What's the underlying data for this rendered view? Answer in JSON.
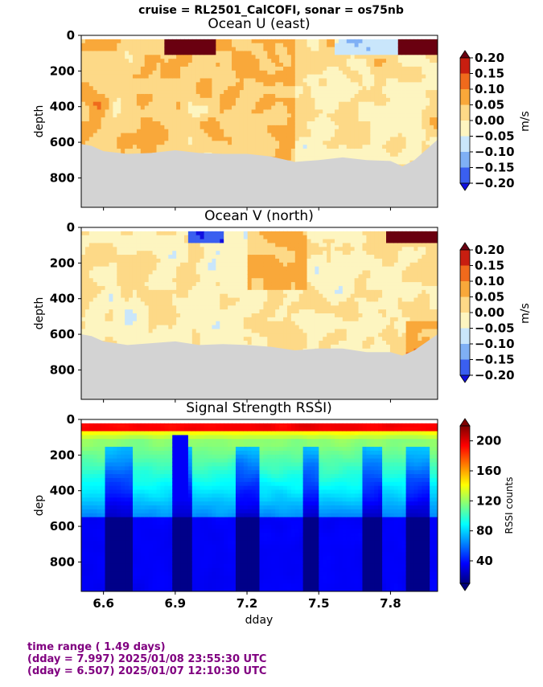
{
  "suptitle": "cruise = RL2501_CalCOFI,  sonar = os75nb",
  "footer": {
    "line1": "time range ( 1.49 days)",
    "line2": "(dday = 7.997) 2025/01/08 23:55:30 UTC",
    "line3": "(dday = 6.507) 2025/01/07 12:10:30 UTC"
  },
  "colors": {
    "land": "#d3d3d3",
    "footer_text": "#800080",
    "diverging": [
      "#1010e0",
      "#3a5ff0",
      "#7fb0f5",
      "#c9e6fb",
      "#fdf5c0",
      "#fdd987",
      "#f9a83a",
      "#f06a1c",
      "#c81e10",
      "#6a0010"
    ],
    "jet_stops": [
      "#00007f",
      "#0000ff",
      "#007fff",
      "#00ffff",
      "#7fff7f",
      "#ffff00",
      "#ff7f00",
      "#ff0000",
      "#7f0000"
    ]
  },
  "chart_data": [
    {
      "type": "heatmap",
      "title": "Ocean U (east)",
      "xlabel": "",
      "ylabel": "depth",
      "xlim": [
        6.507,
        7.997
      ],
      "ylim": [
        965,
        0
      ],
      "yticks": [
        0,
        200,
        400,
        600,
        800
      ],
      "ytick_labels": [
        "0",
        "200",
        "400",
        "600",
        "800"
      ],
      "colorbar": {
        "label": "m/s",
        "range": [
          -0.2,
          0.2
        ],
        "ticks": [
          "0.20",
          "0.15",
          "0.10",
          "0.05",
          "0.00",
          "−0.05",
          "−0.10",
          "−0.15",
          "−0.20"
        ]
      },
      "bottom_depth": [
        [
          6.507,
          610
        ],
        [
          6.55,
          620
        ],
        [
          6.6,
          650
        ],
        [
          6.7,
          665
        ],
        [
          6.8,
          660
        ],
        [
          6.9,
          645
        ],
        [
          7.0,
          660
        ],
        [
          7.1,
          665
        ],
        [
          7.2,
          665
        ],
        [
          7.3,
          680
        ],
        [
          7.4,
          710
        ],
        [
          7.5,
          700
        ],
        [
          7.6,
          685
        ],
        [
          7.7,
          700
        ],
        [
          7.8,
          705
        ],
        [
          7.85,
          735
        ],
        [
          7.9,
          700
        ],
        [
          7.997,
          585
        ]
      ],
      "note": "surface band strong positive near dday 6.9-7.05 and 7.85-8.0"
    },
    {
      "type": "heatmap",
      "title": "Ocean V (north)",
      "xlabel": "",
      "ylabel": "depth",
      "xlim": [
        6.507,
        7.997
      ],
      "ylim": [
        965,
        0
      ],
      "yticks": [
        0,
        200,
        400,
        600,
        800
      ],
      "ytick_labels": [
        "0",
        "200",
        "400",
        "600",
        "800"
      ],
      "colorbar": {
        "label": "m/s",
        "range": [
          -0.2,
          0.2
        ],
        "ticks": [
          "0.20",
          "0.15",
          "0.10",
          "0.05",
          "0.00",
          "−0.05",
          "−0.10",
          "−0.15",
          "−0.20"
        ]
      },
      "bottom_depth": [
        [
          6.507,
          600
        ],
        [
          6.55,
          610
        ],
        [
          6.6,
          640
        ],
        [
          6.7,
          660
        ],
        [
          6.8,
          650
        ],
        [
          6.9,
          640
        ],
        [
          7.0,
          660
        ],
        [
          7.1,
          655
        ],
        [
          7.2,
          660
        ],
        [
          7.3,
          670
        ],
        [
          7.4,
          690
        ],
        [
          7.5,
          680
        ],
        [
          7.6,
          680
        ],
        [
          7.7,
          700
        ],
        [
          7.8,
          700
        ],
        [
          7.85,
          720
        ],
        [
          7.9,
          690
        ],
        [
          7.997,
          600
        ]
      ]
    },
    {
      "type": "heatmap",
      "title": "Signal Strength RSSI)",
      "xlabel": "dday",
      "ylabel": "dep",
      "xlim": [
        6.507,
        7.997
      ],
      "ylim": [
        965,
        0
      ],
      "xticks": [
        6.6,
        6.9,
        7.2,
        7.5,
        7.8
      ],
      "xtick_labels": [
        "6.6",
        "6.9",
        "7.2",
        "7.5",
        "7.8"
      ],
      "yticks": [
        0,
        200,
        400,
        600,
        800
      ],
      "ytick_labels": [
        "0",
        "200",
        "400",
        "600",
        "800"
      ],
      "colorbar": {
        "label": "RSSI counts",
        "range": [
          10,
          220
        ],
        "ticks": [
          "200",
          "160",
          "120",
          "80",
          "40"
        ],
        "tick_values": [
          200,
          160,
          120,
          80,
          40
        ]
      },
      "dark_columns": [
        [
          6.6,
          6.72
        ],
        [
          6.88,
          6.96
        ],
        [
          7.15,
          7.24
        ],
        [
          7.42,
          7.5
        ],
        [
          7.67,
          7.76
        ],
        [
          7.86,
          7.95
        ]
      ]
    }
  ]
}
